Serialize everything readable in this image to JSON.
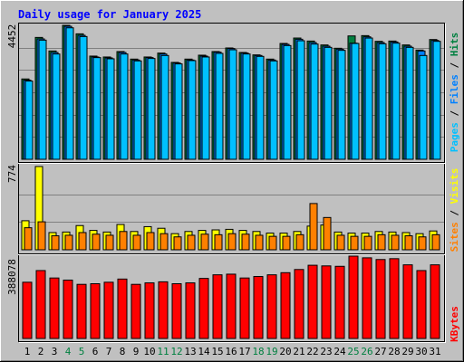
{
  "title": "Daily usage for January 2025",
  "colors": {
    "background": "#c0c0c0",
    "title": "#0000ff",
    "hits": "#008040",
    "files": "#0080ff",
    "pages": "#00c0ff",
    "visits": "#ffff00",
    "sites": "#ff8000",
    "kbytes": "#ff0000",
    "weekend_label": "#008040",
    "weekday_label": "#000000"
  },
  "chart_data": {
    "type": "bar",
    "days": [
      "1",
      "2",
      "3",
      "4",
      "5",
      "6",
      "7",
      "8",
      "9",
      "10",
      "11",
      "12",
      "13",
      "14",
      "15",
      "16",
      "17",
      "18",
      "19",
      "20",
      "21",
      "22",
      "23",
      "24",
      "25",
      "26",
      "27",
      "28",
      "29",
      "30",
      "31"
    ],
    "weekend_days": [
      4,
      5,
      11,
      12,
      18,
      19,
      25,
      26
    ],
    "top_panel": {
      "ymax_label": "4452",
      "ymax": 4452,
      "legend": [
        "Pages",
        "/",
        "Files",
        "/",
        "Hits"
      ],
      "series": [
        {
          "name": "Hits",
          "values": [
            2670,
            4050,
            3600,
            4452,
            4170,
            3430,
            3400,
            3580,
            3330,
            3400,
            3530,
            3220,
            3330,
            3460,
            3580,
            3700,
            3550,
            3470,
            3330,
            3850,
            4030,
            3930,
            3800,
            3690,
            4100,
            4110,
            3920,
            3930,
            3800,
            3630,
            3980
          ]
        },
        {
          "name": "Files",
          "values": [
            2630,
            4000,
            3550,
            4420,
            4120,
            3400,
            3370,
            3550,
            3300,
            3380,
            3500,
            3200,
            3300,
            3430,
            3560,
            3680,
            3530,
            3450,
            3300,
            3820,
            3990,
            3880,
            3760,
            3660,
            3860,
            4070,
            3880,
            3900,
            3760,
            3600,
            3950
          ]
        },
        {
          "name": "Pages",
          "values": [
            2600,
            3960,
            3500,
            4370,
            4080,
            3380,
            3340,
            3500,
            3270,
            3350,
            3450,
            3170,
            3280,
            3400,
            3520,
            3640,
            3500,
            3420,
            3270,
            3780,
            3940,
            3830,
            3720,
            3620,
            3850,
            4030,
            3840,
            3860,
            3720,
            3450,
            3920
          ]
        }
      ]
    },
    "middle_panel": {
      "ymax_label": "774",
      "ymax": 774,
      "legend": [
        "Sites",
        "/",
        "Visits"
      ],
      "series": [
        {
          "name": "Visits",
          "values": [
            270,
            774,
            160,
            165,
            225,
            180,
            165,
            235,
            170,
            215,
            200,
            150,
            170,
            180,
            185,
            190,
            180,
            170,
            155,
            155,
            170,
            220,
            230,
            165,
            155,
            155,
            170,
            165,
            160,
            150,
            175
          ]
        },
        {
          "name": "Sites",
          "values": [
            205,
            260,
            130,
            135,
            160,
            145,
            135,
            170,
            135,
            160,
            150,
            120,
            135,
            145,
            140,
            150,
            145,
            135,
            125,
            125,
            140,
            430,
            300,
            135,
            125,
            125,
            140,
            135,
            130,
            120,
            140
          ]
        }
      ]
    },
    "bottom_panel": {
      "ymax_label": "388078",
      "ymax": 388078,
      "legend": [
        "KBytes"
      ],
      "series": [
        {
          "name": "KBytes",
          "values": [
            265000,
            320000,
            285000,
            275000,
            255000,
            258000,
            265000,
            280000,
            255000,
            262000,
            267000,
            258000,
            262000,
            283000,
            300000,
            303000,
            285000,
            292000,
            300000,
            310000,
            325000,
            345000,
            342000,
            340000,
            388078,
            380000,
            372000,
            376000,
            347000,
            320000,
            347000
          ]
        }
      ]
    }
  }
}
